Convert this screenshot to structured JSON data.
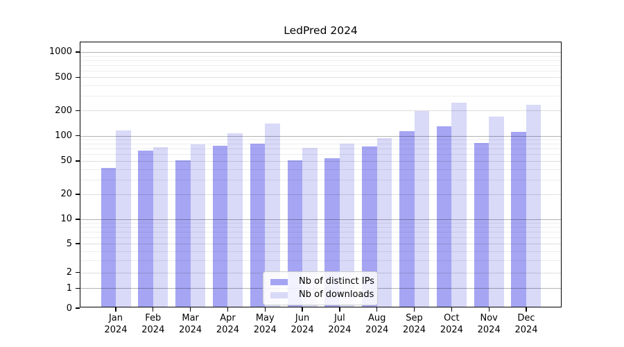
{
  "chart_data": {
    "type": "bar",
    "title": "LedPred 2024",
    "categories": [
      "Jan 2024",
      "Feb 2024",
      "Mar 2024",
      "Apr 2024",
      "May 2024",
      "Jun 2024",
      "Jul 2024",
      "Aug 2024",
      "Sep 2024",
      "Oct 2024",
      "Nov 2024",
      "Dec 2024"
    ],
    "series": [
      {
        "name": "Nb of distinct IPs",
        "color": "#a5a5f3",
        "values": [
          40,
          64,
          49,
          73,
          78,
          49,
          52,
          72,
          110,
          126,
          79,
          108
        ]
      },
      {
        "name": "Nb of downloads",
        "color": "#d9d9f8",
        "values": [
          112,
          70,
          76,
          104,
          136,
          69,
          78,
          91,
          190,
          240,
          164,
          226
        ]
      }
    ],
    "xlabel": "",
    "ylabel": "",
    "y_axis": {
      "scale": "symlog",
      "ticks": [
        0,
        1,
        2,
        5,
        10,
        20,
        50,
        100,
        200,
        500,
        1000
      ],
      "range": [
        0,
        1300
      ]
    },
    "grid": "horizontal major and minor gridlines, drawn over bars",
    "legend_position": "lower center"
  }
}
